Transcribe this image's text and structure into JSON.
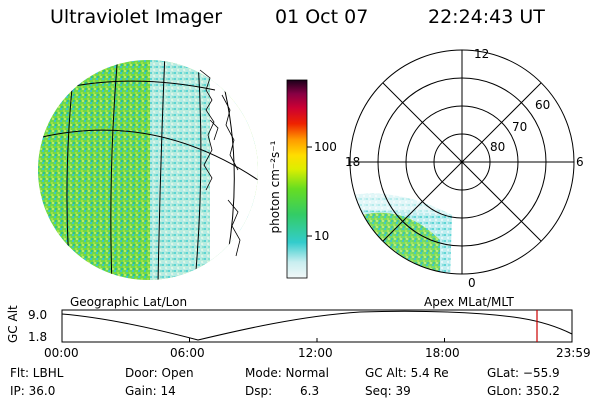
{
  "header": {
    "title": "Ultraviolet Imager",
    "date": "01 Oct 07",
    "time": "22:24:43 UT"
  },
  "colorbar": {
    "unit_label": "photon cm⁻²s⁻¹",
    "ticks": [
      "100",
      "10"
    ]
  },
  "polar": {
    "mlt_labels": [
      "12",
      "18",
      "6",
      "0"
    ],
    "lat_labels": [
      "60",
      "70",
      "80"
    ]
  },
  "maps": {
    "left_label": "Geographic Lat/Lon",
    "right_label": "Apex MLat/MLT"
  },
  "altitude": {
    "axis_label": "GC Alt",
    "y_ticks": [
      "9.0",
      "1.8"
    ],
    "x_ticks": [
      "00:00",
      "06:00",
      "12:00",
      "18:00",
      "23:59"
    ],
    "marker_color": "#cc0000"
  },
  "info": {
    "flt": "Flt: LBHL",
    "ip": "IP: 36.0",
    "door": "Door: Open",
    "gain": "Gain: 14",
    "mode": "Mode: Normal",
    "dsp_label": "Dsp:",
    "dsp_value": "6.3",
    "gc_alt": "GC Alt: 5.4 Re",
    "seq": "Seq: 39",
    "glat": "GLat: −55.9",
    "glon": "GLon: 350.2"
  }
}
